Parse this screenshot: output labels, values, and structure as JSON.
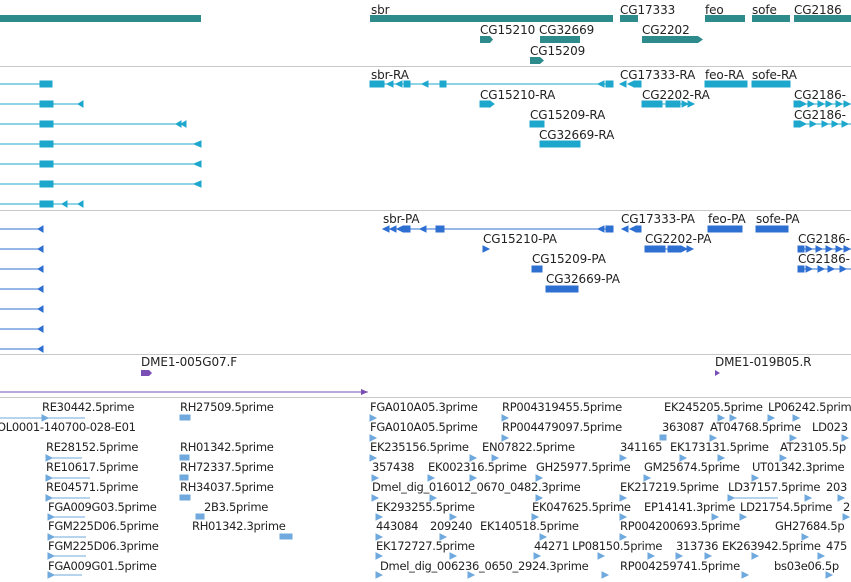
{
  "colors": {
    "gene": "#2e8b8b",
    "rna": "#1ea7cc",
    "protein": "#2e6fd2",
    "insertion": "#7a4fb5",
    "est": "#6fa9de",
    "separator": "#c8c8c8"
  },
  "tracks": {
    "genes": {
      "labels": [
        "sbr",
        "CG17333",
        "feo",
        "sofe",
        "CG2186",
        "CG15210",
        "CG32669",
        "CG2202",
        "CG15209"
      ]
    },
    "transcripts": {
      "labels": [
        "sbr-RA",
        "CG17333-RA",
        "feo-RA",
        "sofe-RA",
        "CG15210-RA",
        "CG2202-RA",
        "CG2186-",
        "CG2186-",
        "CG15209-RA",
        "CG32669-RA"
      ]
    },
    "proteins": {
      "labels": [
        "sbr-PA",
        "CG17333-PA",
        "feo-PA",
        "sofe-PA",
        "CG15210-PA",
        "CG2202-PA",
        "CG2186-",
        "CG15209-PA",
        "CG2186-",
        "CG32669-PA"
      ]
    },
    "insertions": {
      "labels": [
        "DME1-005G07.F",
        "DME1-019B05.R"
      ]
    },
    "ests": {
      "labels": [
        "RE30442.5prime",
        "RH27509.5prime",
        "FGA010A05.3prime",
        "RP004319455.5prime",
        "EK245205.5prime",
        "LP06242.5prime",
        "OL0001-140700-028-E01",
        "FGA010A05.5prime",
        "RP004479097.5prime",
        "363087",
        "AT04768.5prime",
        "LD023",
        "RE28152.5prime",
        "RH01342.5prime",
        "EK235156.5prime",
        "EN07822.5prime",
        "341165",
        "EK173131.5prime",
        "AT23105.5p",
        "RE10617.5prime",
        "RH72337.5prime",
        "357438",
        "EK002316.5prime",
        "GH25977.5prime",
        "GM25674.5prime",
        "UT01342.3prime",
        "RE04571.5prime",
        "RH34037.5prime",
        "Dmel_dig_016012_0670_0482.3prime",
        "EK217219.5prime",
        "LD37157.5prime",
        "203",
        "FGA009G03.5prime",
        "2B3.5prime",
        "EK293255.5prime",
        "EK047625.5prime",
        "EP14141.3prime",
        "LD21754.5prime",
        "2",
        "FGM225D06.5prime",
        "RH01342.3prime",
        "443084",
        "209240",
        "EK140518.5prime",
        "RP004200693.5prime",
        "GH27684.5p",
        "FGM225D06.3prime",
        "EK172727.5prime",
        "44271",
        "LP08150.5prime",
        "313736",
        "EK263942.5prime",
        "475",
        "FGA009G01.5prime",
        "Dmel_dig_006236_0650_2924.3prime",
        "RP004259741.5prime",
        "bs03e06.5p"
      ]
    }
  }
}
